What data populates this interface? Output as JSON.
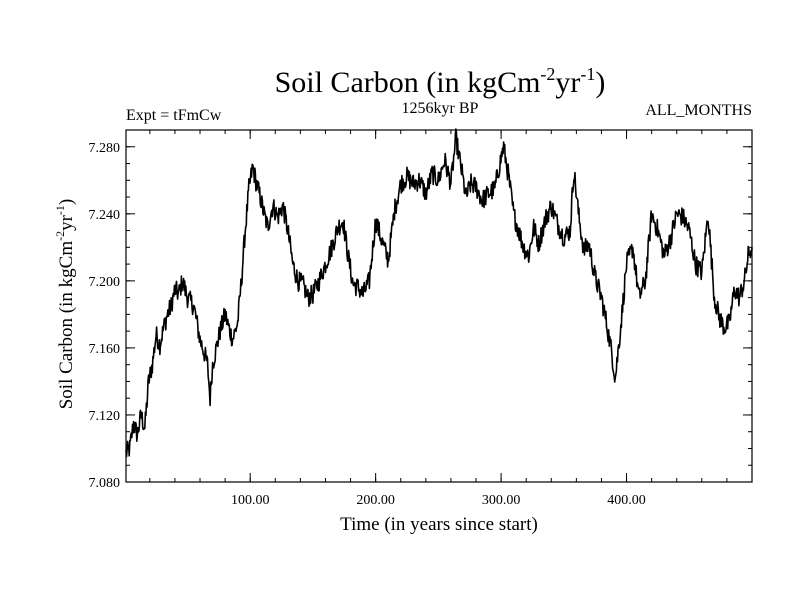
{
  "chart_data": {
    "type": "line",
    "title": {
      "main": "Soil Carbon (in kgCm",
      "sup1": "-2",
      "mid": "yr",
      "sup2": "-1",
      "end": ")"
    },
    "subtitle_left": "Expt = tFmCw",
    "subtitle_center": "1256kyr BP",
    "subtitle_right": "ALL_MONTHS",
    "xlabel": "Time (in years since start)",
    "ylabel": {
      "main": "Soil Carbon (in kgCm",
      "sup1": "-2",
      "mid": "yr",
      "sup2": "-1",
      "end": ")"
    },
    "xlim": [
      1,
      500
    ],
    "ylim": [
      7.08,
      7.29
    ],
    "x_major_ticks": [
      100,
      200,
      300,
      400
    ],
    "x_tick_labels": [
      "100.00",
      "200.00",
      "300.00",
      "400.00"
    ],
    "x_minor_step": 20,
    "y_major_ticks": [
      7.08,
      7.12,
      7.16,
      7.2,
      7.24,
      7.28
    ],
    "y_tick_labels": [
      "7.080",
      "7.120",
      "7.160",
      "7.200",
      "7.240",
      "7.280"
    ],
    "y_minor_step": 0.01,
    "line_color": "#000000",
    "series": [
      {
        "name": "Soil Carbon",
        "x": [
          1,
          4,
          7,
          10,
          13,
          16,
          19,
          22,
          25,
          28,
          31,
          34,
          37,
          40,
          43,
          46,
          50,
          55,
          60,
          63,
          66,
          68,
          70,
          73,
          76,
          80,
          83,
          86,
          90,
          93,
          96,
          99,
          102,
          105,
          108,
          111,
          114,
          118,
          122,
          126,
          130,
          134,
          138,
          142,
          146,
          150,
          155,
          160,
          165,
          170,
          174,
          178,
          182,
          186,
          190,
          195,
          200,
          205,
          210,
          215,
          220,
          225,
          230,
          235,
          240,
          245,
          250,
          255,
          260,
          264,
          268,
          272,
          276,
          280,
          285,
          290,
          295,
          299,
          302,
          306,
          310,
          314,
          318,
          322,
          326,
          330,
          335,
          340,
          345,
          350,
          355,
          358,
          362,
          366,
          370,
          375,
          380,
          384,
          388,
          391,
          395,
          400,
          405,
          410,
          415,
          420,
          425,
          430,
          435,
          440,
          445,
          450,
          455,
          460,
          465,
          470,
          474,
          478,
          482,
          486,
          490,
          494,
          497,
          500
        ],
        "y": [
          7.097,
          7.1,
          7.115,
          7.108,
          7.12,
          7.112,
          7.14,
          7.15,
          7.168,
          7.162,
          7.172,
          7.18,
          7.185,
          7.195,
          7.192,
          7.2,
          7.19,
          7.185,
          7.165,
          7.158,
          7.15,
          7.13,
          7.15,
          7.16,
          7.17,
          7.18,
          7.172,
          7.165,
          7.175,
          7.2,
          7.23,
          7.255,
          7.268,
          7.258,
          7.25,
          7.24,
          7.232,
          7.245,
          7.238,
          7.245,
          7.23,
          7.21,
          7.2,
          7.198,
          7.19,
          7.192,
          7.2,
          7.21,
          7.22,
          7.232,
          7.236,
          7.215,
          7.198,
          7.196,
          7.192,
          7.2,
          7.236,
          7.224,
          7.212,
          7.242,
          7.258,
          7.262,
          7.258,
          7.26,
          7.252,
          7.264,
          7.26,
          7.272,
          7.258,
          7.285,
          7.268,
          7.25,
          7.258,
          7.256,
          7.248,
          7.252,
          7.255,
          7.27,
          7.28,
          7.262,
          7.24,
          7.23,
          7.22,
          7.215,
          7.232,
          7.222,
          7.236,
          7.245,
          7.234,
          7.226,
          7.23,
          7.266,
          7.238,
          7.218,
          7.222,
          7.202,
          7.19,
          7.175,
          7.158,
          7.142,
          7.17,
          7.21,
          7.22,
          7.19,
          7.2,
          7.24,
          7.23,
          7.215,
          7.225,
          7.24,
          7.238,
          7.23,
          7.21,
          7.205,
          7.24,
          7.19,
          7.178,
          7.172,
          7.175,
          7.195,
          7.19,
          7.2,
          7.215,
          7.22
        ]
      }
    ]
  }
}
